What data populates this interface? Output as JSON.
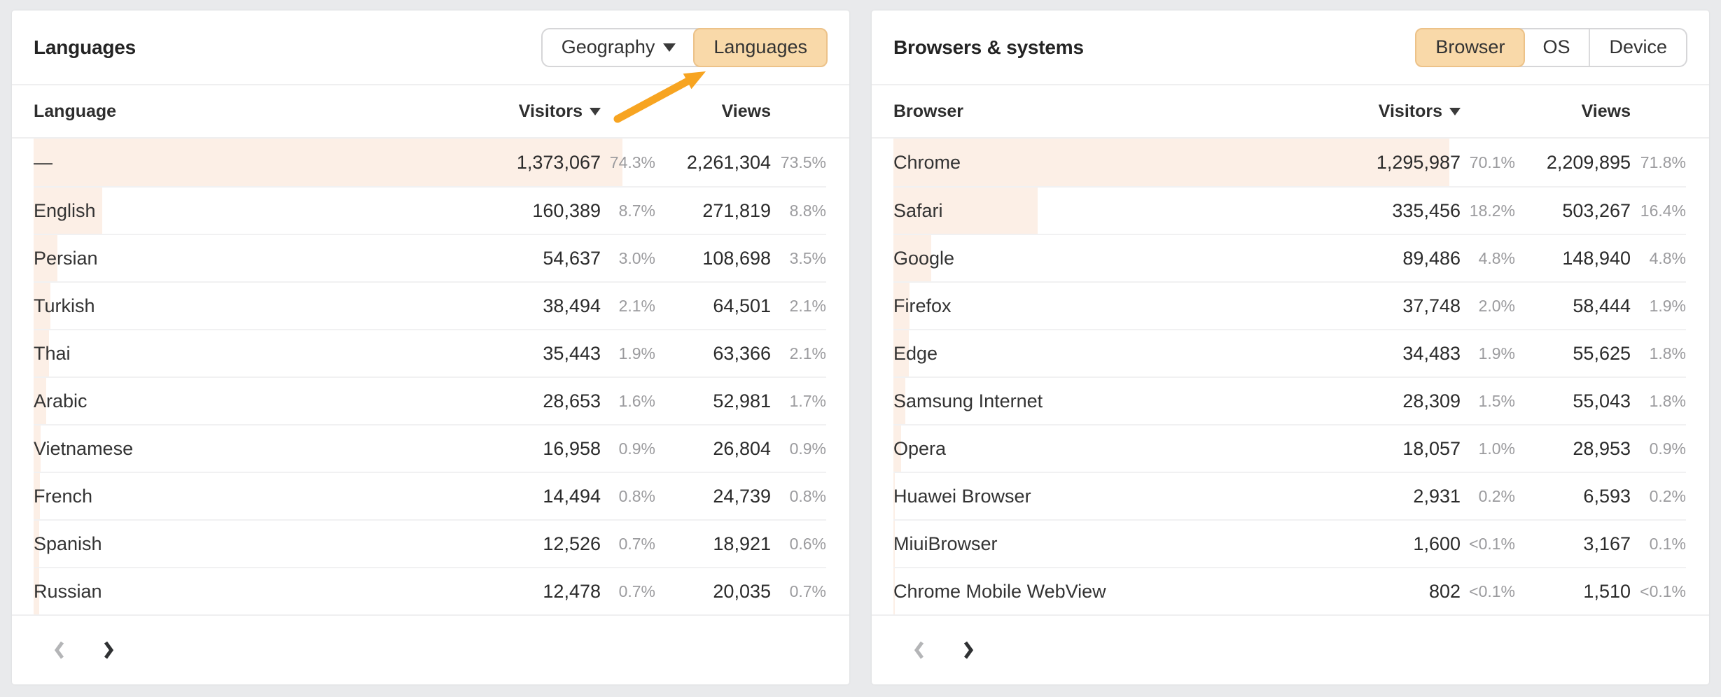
{
  "colors": {
    "page_bg": "#E9EAEC",
    "card_bg": "#FFFFFF",
    "accent_orange": "#F7A421",
    "toggle_selected_fill": "#F9D9A9",
    "toggle_selected_border": "#ECC289",
    "row_bar_fill": "#FCEFE6",
    "text_primary": "#2B2B2B",
    "text_percent": "#9B9B9E"
  },
  "panels": [
    {
      "title": "Languages",
      "toggle": [
        {
          "label": "Geography",
          "caret": true,
          "selected": false
        },
        {
          "label": "Languages",
          "caret": false,
          "selected": true
        }
      ],
      "columns": {
        "dimension": "Language",
        "visitors": "Visitors",
        "views": "Views"
      },
      "rows": [
        {
          "label": "—",
          "visitors": "1,373,067",
          "visitors_pct": "74.3%",
          "views": "2,261,304",
          "views_pct": "73.5%",
          "bar": 74.3
        },
        {
          "label": "English",
          "visitors": "160,389",
          "visitors_pct": "8.7%",
          "views": "271,819",
          "views_pct": "8.8%",
          "bar": 8.7
        },
        {
          "label": "Persian",
          "visitors": "54,637",
          "visitors_pct": "3.0%",
          "views": "108,698",
          "views_pct": "3.5%",
          "bar": 3.0
        },
        {
          "label": "Turkish",
          "visitors": "38,494",
          "visitors_pct": "2.1%",
          "views": "64,501",
          "views_pct": "2.1%",
          "bar": 2.1
        },
        {
          "label": "Thai",
          "visitors": "35,443",
          "visitors_pct": "1.9%",
          "views": "63,366",
          "views_pct": "2.1%",
          "bar": 1.9
        },
        {
          "label": "Arabic",
          "visitors": "28,653",
          "visitors_pct": "1.6%",
          "views": "52,981",
          "views_pct": "1.7%",
          "bar": 1.6
        },
        {
          "label": "Vietnamese",
          "visitors": "16,958",
          "visitors_pct": "0.9%",
          "views": "26,804",
          "views_pct": "0.9%",
          "bar": 0.9
        },
        {
          "label": "French",
          "visitors": "14,494",
          "visitors_pct": "0.8%",
          "views": "24,739",
          "views_pct": "0.8%",
          "bar": 0.8
        },
        {
          "label": "Spanish",
          "visitors": "12,526",
          "visitors_pct": "0.7%",
          "views": "18,921",
          "views_pct": "0.6%",
          "bar": 0.7
        },
        {
          "label": "Russian",
          "visitors": "12,478",
          "visitors_pct": "0.7%",
          "views": "20,035",
          "views_pct": "0.7%",
          "bar": 0.7
        }
      ],
      "pagination": {
        "prev_enabled": false,
        "next_enabled": true
      },
      "annotation": "orange arrow pointing to Languages toggle"
    },
    {
      "title": "Browsers & systems",
      "toggle": [
        {
          "label": "Browser",
          "caret": false,
          "selected": true
        },
        {
          "label": "OS",
          "caret": false,
          "selected": false
        },
        {
          "label": "Device",
          "caret": false,
          "selected": false
        }
      ],
      "columns": {
        "dimension": "Browser",
        "visitors": "Visitors",
        "views": "Views"
      },
      "rows": [
        {
          "label": "Chrome",
          "visitors": "1,295,987",
          "visitors_pct": "70.1%",
          "views": "2,209,895",
          "views_pct": "71.8%",
          "bar": 70.1
        },
        {
          "label": "Safari",
          "visitors": "335,456",
          "visitors_pct": "18.2%",
          "views": "503,267",
          "views_pct": "16.4%",
          "bar": 18.2
        },
        {
          "label": "Google",
          "visitors": "89,486",
          "visitors_pct": "4.8%",
          "views": "148,940",
          "views_pct": "4.8%",
          "bar": 4.8
        },
        {
          "label": "Firefox",
          "visitors": "37,748",
          "visitors_pct": "2.0%",
          "views": "58,444",
          "views_pct": "1.9%",
          "bar": 2.0
        },
        {
          "label": "Edge",
          "visitors": "34,483",
          "visitors_pct": "1.9%",
          "views": "55,625",
          "views_pct": "1.8%",
          "bar": 1.9
        },
        {
          "label": "Samsung Internet",
          "visitors": "28,309",
          "visitors_pct": "1.5%",
          "views": "55,043",
          "views_pct": "1.8%",
          "bar": 1.5
        },
        {
          "label": "Opera",
          "visitors": "18,057",
          "visitors_pct": "1.0%",
          "views": "28,953",
          "views_pct": "0.9%",
          "bar": 1.0
        },
        {
          "label": "Huawei Browser",
          "visitors": "2,931",
          "visitors_pct": "0.2%",
          "views": "6,593",
          "views_pct": "0.2%",
          "bar": 0.2
        },
        {
          "label": "MiuiBrowser",
          "visitors": "1,600",
          "visitors_pct": "<0.1%",
          "views": "3,167",
          "views_pct": "0.1%",
          "bar": 0.06
        },
        {
          "label": "Chrome Mobile WebView",
          "visitors": "802",
          "visitors_pct": "<0.1%",
          "views": "1,510",
          "views_pct": "<0.1%",
          "bar": 0.06
        }
      ],
      "pagination": {
        "prev_enabled": false,
        "next_enabled": true
      }
    }
  ]
}
